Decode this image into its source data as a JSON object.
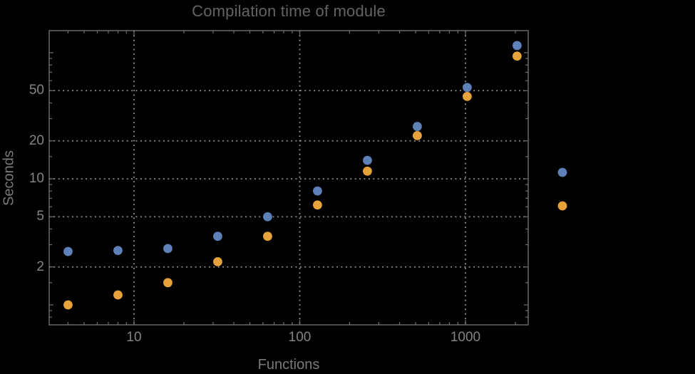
{
  "chart_data": {
    "type": "scatter",
    "title": "Compilation time of module",
    "xlabel": "Functions",
    "ylabel": "Seconds",
    "x_scale": "log",
    "y_scale": "log",
    "x_range": [
      3.1,
      2400
    ],
    "y_range": [
      0.66,
      150
    ],
    "grid": "dotted lines at labeled ticks",
    "x": [
      4,
      8,
      16,
      32,
      64,
      128,
      256,
      512,
      1024,
      2048
    ],
    "series": [
      {
        "name": "series-blue",
        "color": "#5e82b8",
        "values": [
          2.65,
          2.7,
          2.8,
          3.5,
          5.0,
          8.0,
          14.0,
          26.0,
          53.0,
          114.0
        ]
      },
      {
        "name": "series-orange",
        "color": "#e7a33b",
        "values": [
          1.0,
          1.2,
          1.5,
          2.2,
          3.5,
          6.2,
          11.5,
          22.0,
          45.0,
          94.0
        ]
      }
    ],
    "x_ticks": {
      "labeled": [
        "10",
        "100",
        "1000"
      ],
      "labeled_values": [
        10,
        100,
        1000
      ],
      "minor": [
        4,
        5,
        6,
        7,
        8,
        9,
        20,
        30,
        40,
        50,
        60,
        70,
        80,
        90,
        200,
        300,
        400,
        500,
        600,
        700,
        800,
        900,
        2000
      ]
    },
    "y_ticks": {
      "labeled": [
        "2",
        "5",
        "10",
        "20",
        "50"
      ],
      "labeled_values": [
        2,
        5,
        10,
        20,
        50
      ],
      "unlabeled_major": [
        1,
        100
      ],
      "minor": [
        0.8,
        0.9,
        1.5,
        3,
        4,
        6,
        7,
        8,
        9,
        15,
        30,
        40,
        60,
        70,
        80,
        90,
        150
      ]
    },
    "legend": {
      "position": "outside-right",
      "labels_visible": false,
      "markers": [
        "series-blue",
        "series-orange"
      ]
    }
  },
  "colors": {
    "background": "#000000",
    "frame": "#6f6f6f",
    "grid": "#999999",
    "tick_label": "#848484",
    "axis_label": "#7a7a7a",
    "title": "#636363",
    "series_blue": "#5e82b8",
    "series_orange": "#e7a33b"
  }
}
